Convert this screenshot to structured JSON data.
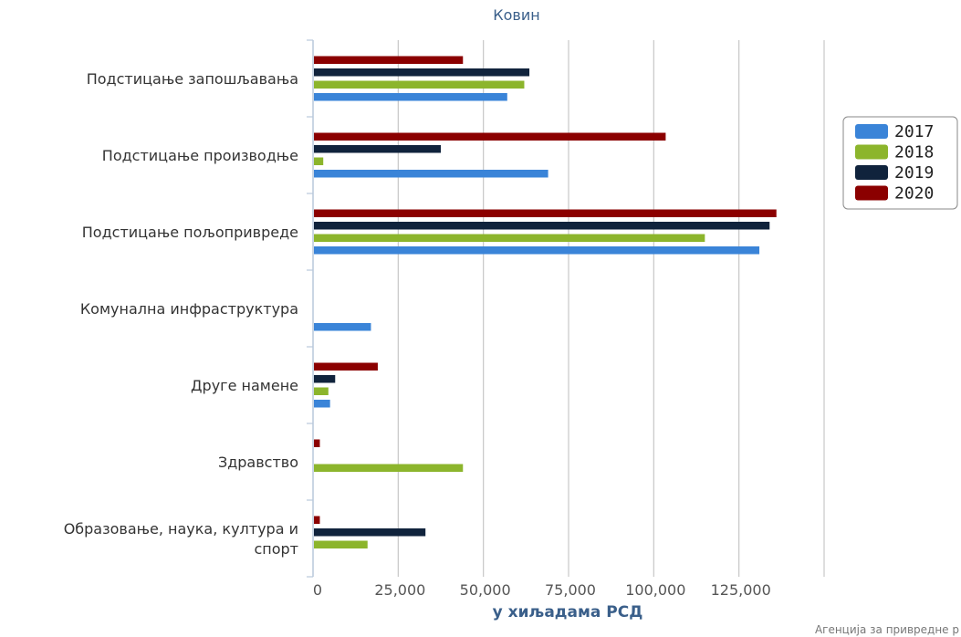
{
  "chart_data": {
    "type": "bar",
    "orientation": "horizontal",
    "subtitle": "Ковин",
    "xlabel": "у хиљадама РСД",
    "credit": "Агенција за привредне р",
    "xlim": [
      0,
      150000
    ],
    "x_ticks": [
      "0",
      "25,000",
      "50,000",
      "75,000",
      "100,000",
      "125,000"
    ],
    "x_tick_values": [
      0,
      25000,
      50000,
      75000,
      100000,
      125000
    ],
    "grid": true,
    "legend_position": "right",
    "categories": [
      "Подстицање запошљавања",
      "Подстицање производње",
      "Подстицање пољопривреде",
      "Комунална инфраструктура",
      "Друге намене",
      "Здравство",
      "Образовање, наука, култура и спорт"
    ],
    "category_lines": [
      [
        "Подстицање запошљавања"
      ],
      [
        "Подстицање производње"
      ],
      [
        "Подстицање пољопривреде"
      ],
      [
        "Комунална инфраструктура"
      ],
      [
        "Друге намене"
      ],
      [
        "Здравство"
      ],
      [
        "Образовање, наука, култура и",
        "спорт"
      ]
    ],
    "series": [
      {
        "name": "2017",
        "color": "#3a84d8",
        "values": [
          57000,
          69000,
          131000,
          17000,
          5000,
          0,
          0
        ]
      },
      {
        "name": "2018",
        "color": "#8cb52c",
        "values": [
          62000,
          3000,
          115000,
          0,
          4500,
          44000,
          16000
        ]
      },
      {
        "name": "2019",
        "color": "#10233c",
        "values": [
          63500,
          37500,
          134000,
          0,
          6500,
          0,
          33000
        ]
      },
      {
        "name": "2020",
        "color": "#8b0000",
        "values": [
          44000,
          103500,
          136000,
          0,
          19000,
          2000,
          2000
        ]
      }
    ]
  }
}
